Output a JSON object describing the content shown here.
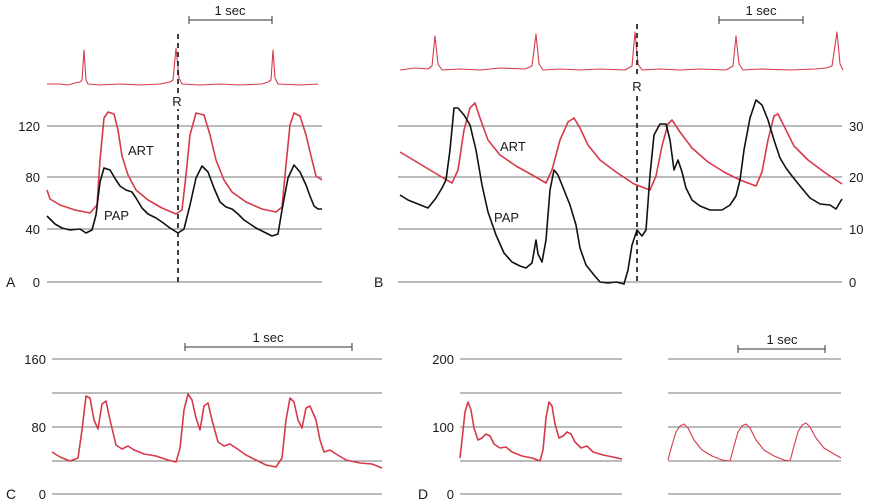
{
  "colors": {
    "art": "#d63a4a",
    "pap": "#111111",
    "grid": "#4a4a4a"
  },
  "panel_a": {
    "letter": "A",
    "time_label": "1 sec",
    "r_label": "R",
    "ticks": [
      "120",
      "80",
      "40",
      "0"
    ],
    "art_label": "ART",
    "pap_label": "PAP"
  },
  "panel_b": {
    "letter": "B",
    "time_label": "1 sec",
    "r_label": "R",
    "ticks": [
      "30",
      "20",
      "10",
      "0"
    ],
    "art_label": "ART",
    "pap_label": "PAP"
  },
  "panel_c": {
    "letter": "C",
    "time_label": "1 sec",
    "ticks": [
      "160",
      "80",
      "0"
    ]
  },
  "panel_d": {
    "letter": "D",
    "time_label": "1 sec",
    "ticks": [
      "200",
      "100",
      "0"
    ]
  }
}
